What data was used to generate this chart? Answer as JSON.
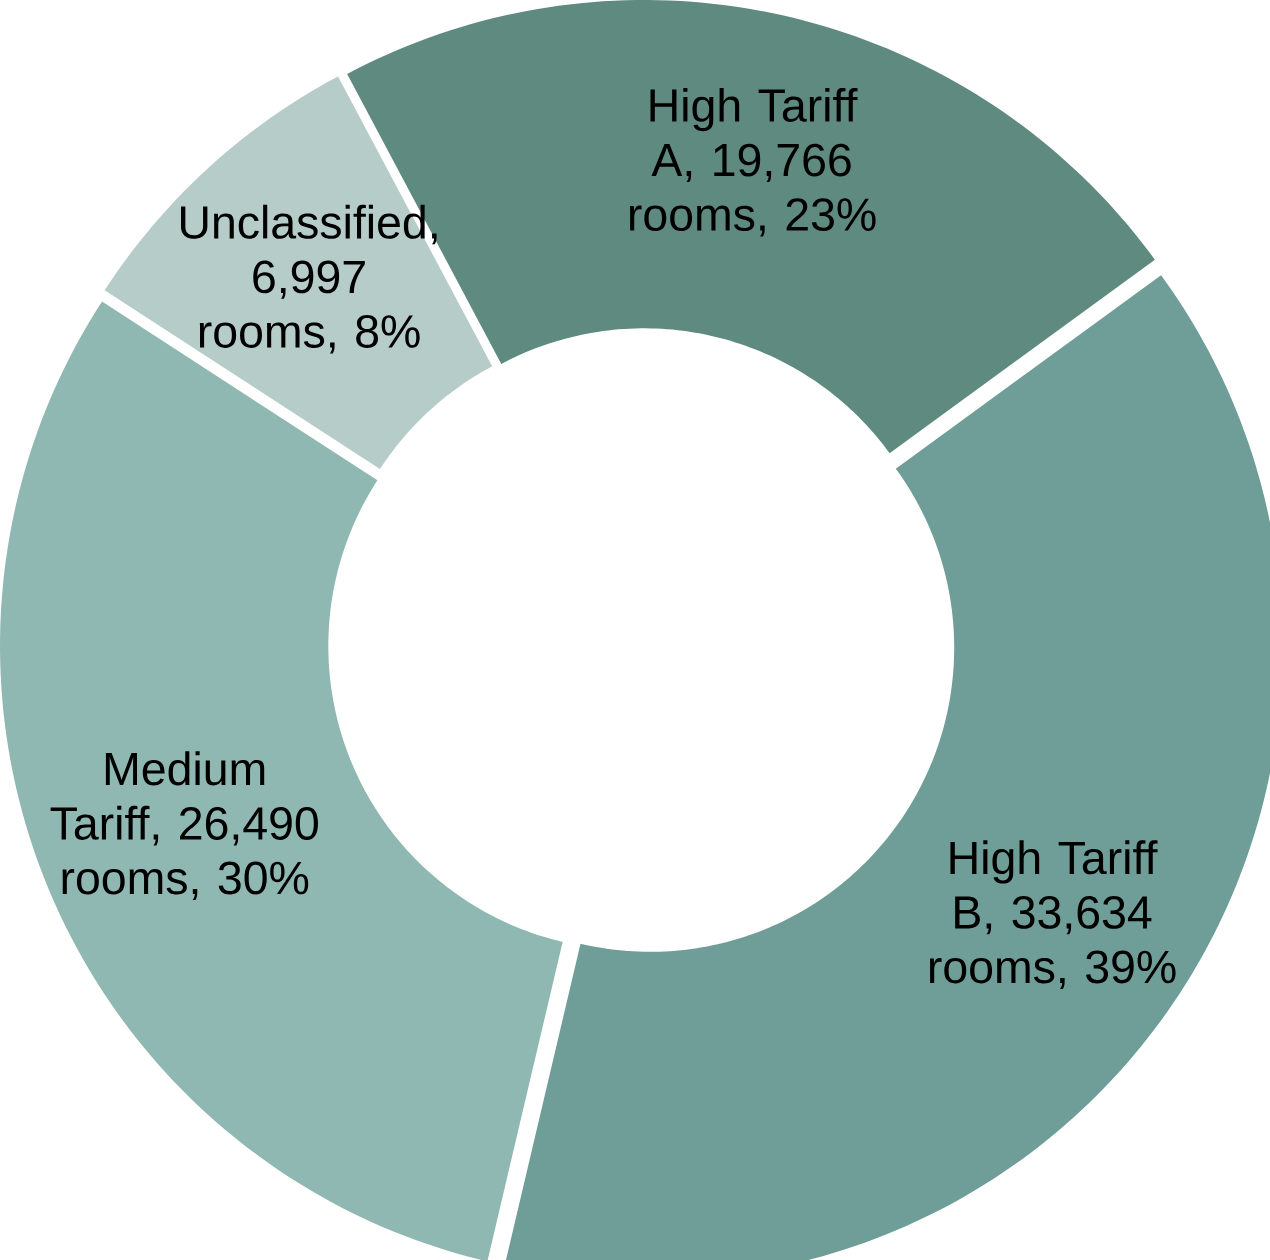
{
  "chart_data": {
    "type": "donut",
    "categories": [
      "High Tariff A",
      "High Tariff B",
      "Medium Tariff",
      "Unclassified"
    ],
    "values": [
      19766,
      33634,
      26490,
      6997
    ],
    "colors": [
      "#5f8a80",
      "#6e9e97",
      "#8fb8b2",
      "#b5ccc9"
    ],
    "value_labels": [
      ", 19,766 rooms, 23%",
      ", 33,634 rooms, 39%",
      ", 26,490 rooms, 30%",
      ", 6,997 rooms, 8%"
    ]
  }
}
